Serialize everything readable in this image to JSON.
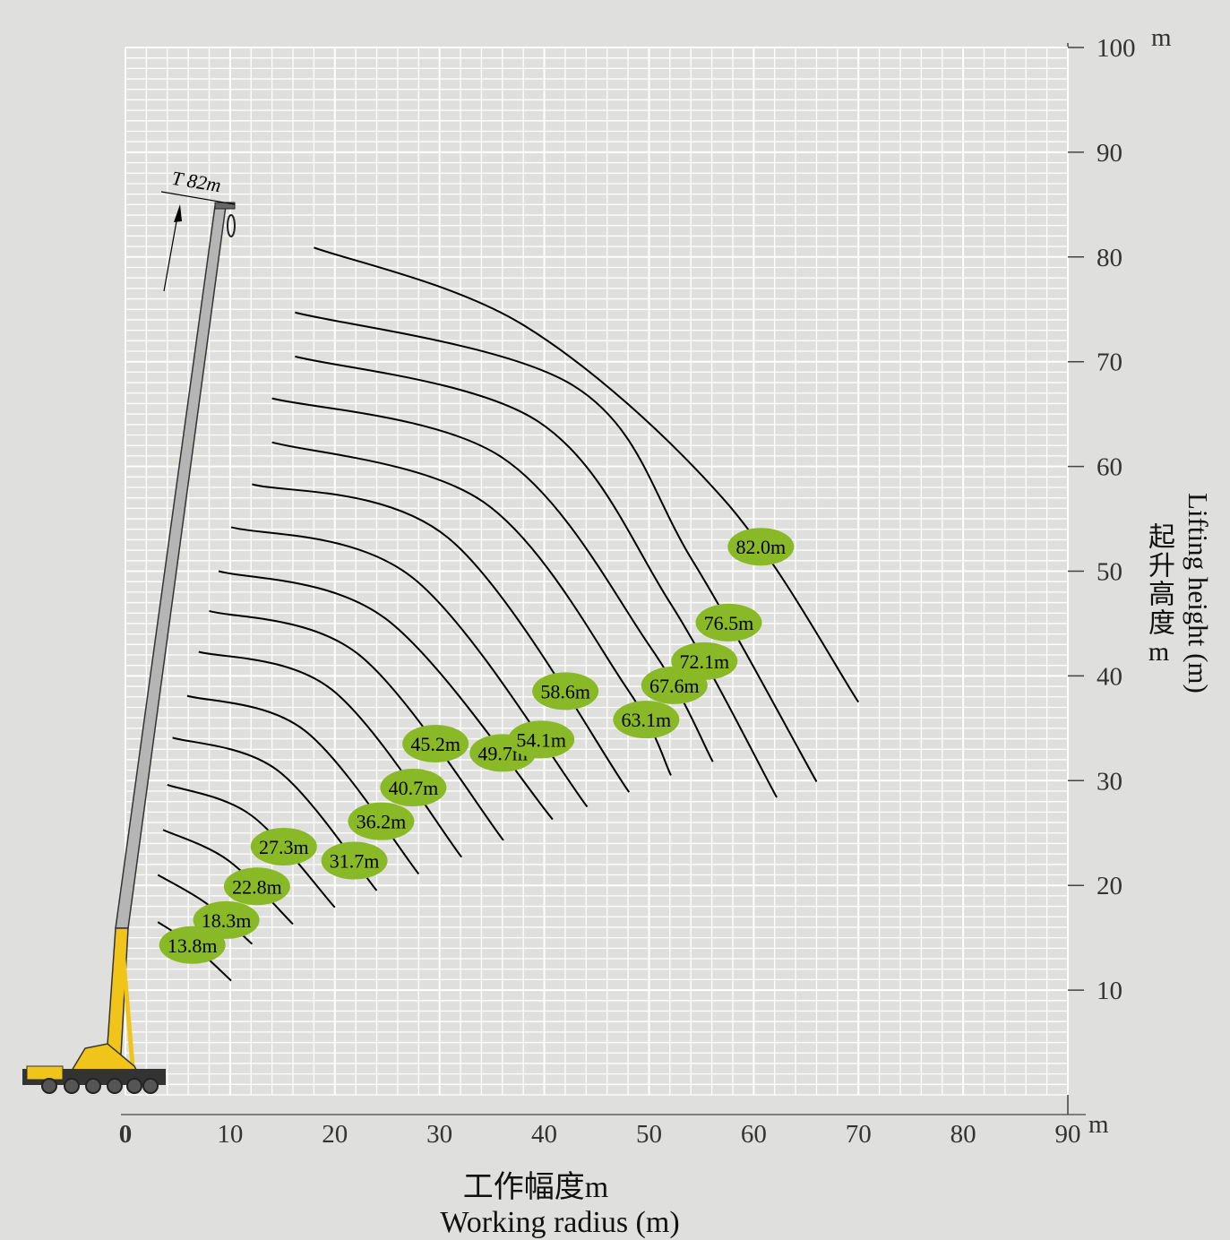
{
  "chart_data": {
    "type": "line",
    "x_label": "工作幅度m",
    "x_label_en": "Working radius (m)",
    "y_label": "起升高度m",
    "y_label_en": "Lifting height (m)",
    "x_unit": "m",
    "y_unit": "m",
    "annotation": "T 82m",
    "xlim": [
      0,
      90
    ],
    "ylim": [
      0,
      100
    ],
    "xticks": [
      0,
      10,
      20,
      30,
      40,
      50,
      60,
      70,
      80,
      90
    ],
    "yticks": [
      10,
      20,
      30,
      40,
      50,
      60,
      70,
      80,
      90,
      100
    ],
    "grid": true,
    "color": "#000000",
    "label_color": "#8ab927",
    "series": [
      {
        "name": "13.8m",
        "x": [
          3.1,
          6.4,
          10.1
        ],
        "values": [
          16.5,
          14.3,
          10.9
        ]
      },
      {
        "name": "18.3m",
        "x": [
          3.1,
          7.7,
          12.1
        ],
        "values": [
          21.0,
          18.3,
          14.4
        ]
      },
      {
        "name": "22.8m",
        "x": [
          3.6,
          9.8,
          16.0
        ],
        "values": [
          25.3,
          22.4,
          16.3
        ]
      },
      {
        "name": "27.3m",
        "x": [
          4.0,
          12.0,
          20.0
        ],
        "values": [
          29.6,
          26.7,
          17.9
        ]
      },
      {
        "name": "31.7m",
        "x": [
          4.5,
          14.5,
          24.0
        ],
        "values": [
          34.1,
          31.0,
          19.5
        ]
      },
      {
        "name": "36.2m",
        "x": [
          5.9,
          17.1,
          28.0
        ],
        "values": [
          38.1,
          34.8,
          21.1
        ]
      },
      {
        "name": "40.7m",
        "x": [
          7.0,
          19.7,
          32.1
        ],
        "values": [
          42.3,
          38.7,
          22.7
        ]
      },
      {
        "name": "45.2m",
        "x": [
          8.0,
          22.2,
          36.1
        ],
        "values": [
          46.2,
          42.1,
          24.3
        ]
      },
      {
        "name": "49.7m",
        "x": [
          8.9,
          24.8,
          40.8
        ],
        "values": [
          50.0,
          45.5,
          26.3
        ]
      },
      {
        "name": "54.1m",
        "x": [
          10.1,
          27.4,
          44.1
        ],
        "values": [
          54.2,
          49.4,
          27.5
        ]
      },
      {
        "name": "58.6m",
        "x": [
          12.1,
          30.8,
          48.1
        ],
        "values": [
          58.3,
          53.2,
          28.9
        ]
      },
      {
        "name": "63.1m",
        "x": [
          14.0,
          34.2,
          47.9,
          52.1
        ],
        "values": [
          62.3,
          56.6,
          38.8,
          30.5
        ]
      },
      {
        "name": "67.6m",
        "x": [
          14.0,
          35.9,
          50.1,
          56.1
        ],
        "values": [
          66.5,
          60.9,
          42.8,
          31.8
        ]
      },
      {
        "name": "72.1m",
        "x": [
          16.2,
          39.4,
          52.0,
          62.2
        ],
        "values": [
          70.5,
          64.3,
          47.0,
          28.4
        ]
      },
      {
        "name": "76.5m",
        "x": [
          16.2,
          42.8,
          54.1,
          66.0
        ],
        "values": [
          74.7,
          67.7,
          51.1,
          29.9
        ]
      },
      {
        "name": "82.0m",
        "x": [
          18.0,
          38.0,
          57.1,
          70.0
        ],
        "values": [
          80.9,
          73.5,
          56.9,
          37.5
        ]
      }
    ]
  }
}
